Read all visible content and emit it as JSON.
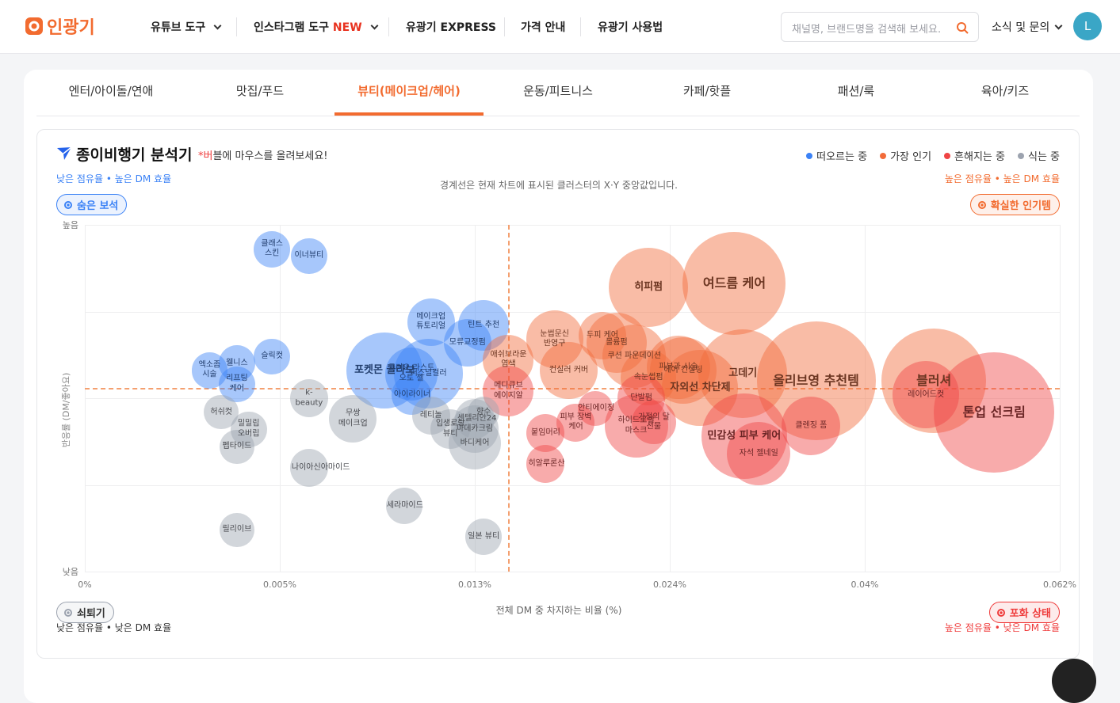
{
  "header": {
    "logo": "인광기",
    "nav": [
      "유튜브 도구",
      "인스타그램 도구",
      "유광기 EXPRESS",
      "가격 안내",
      "유광기 사용법"
    ],
    "new_badge": "NEW",
    "search_placeholder": "채널명, 브랜드명을 검색해 보세요.",
    "notice": "소식 및 문의",
    "avatar": "L"
  },
  "tabs": {
    "items": [
      "엔터/아이돌/연애",
      "맛집/푸드",
      "뷰티(메이크업/헤어)",
      "운동/피트니스",
      "카페/핫플",
      "패션/룩",
      "육아/키즈"
    ],
    "active": 2
  },
  "chart_data": {
    "type": "scatter",
    "title": "종이비행기 분석기",
    "hint": "*버블에 마우스를 올려보세요!",
    "note": "경계선은 현재 차트에 표시된 클러스터의 X·Y 중앙값입니다.",
    "xlabel": "전체 DM 중 차지하는 비율 (%)",
    "ylabel": "반응률 (DM/좋아요)",
    "xlim": [
      0,
      0.062
    ],
    "xticks": [
      {
        "value": 0,
        "label": "0%"
      },
      {
        "value": 0.005,
        "label": "0.005%"
      },
      {
        "value": 0.013,
        "label": "0.013%"
      },
      {
        "value": 0.024,
        "label": "0.024%"
      },
      {
        "value": 0.04,
        "label": "0.04%"
      },
      {
        "value": 0.062,
        "label": "0.062%"
      }
    ],
    "ylim": [
      0,
      100
    ],
    "yticks": [
      {
        "value": 0,
        "label": "낮음"
      },
      {
        "value": 100,
        "label": "높음"
      }
    ],
    "grid": true,
    "legend": "top-right",
    "medians": {
      "x": 0.0149,
      "y": 53
    },
    "quadrants": {
      "top_left": {
        "label": "숨은 보석",
        "desc": "낮은 점유율 • 높은 DM 효율",
        "color": "#3b82f6"
      },
      "top_right": {
        "label": "확실한 인기템",
        "desc": "높은 점유율 • 높은 DM 효율",
        "color": "#f26b2f"
      },
      "bottom_left": {
        "label": "쇠퇴기",
        "desc": "낮은 점유율 • 낮은 DM 효율",
        "color": "#9ca3af"
      },
      "bottom_right": {
        "label": "포화 상태",
        "desc": "높은 점유율 • 낮은 DM 효율",
        "color": "#ef3b3b"
      }
    },
    "series": [
      {
        "name": "떠오르는 중",
        "color": "#3b82f6",
        "labels": [
          "클래스 스킨",
          "이너뷰티",
          "메이크업 튜토리얼",
          "틴트 추천",
          "모류교정펌",
          "포켓몬 콜라보",
          "퍼스널컬러",
          "클리오 라스트 오토 젤",
          "아이라이너",
          "슬릭컷",
          "엑소좀 시술",
          "웰니스",
          "리프팅 케어"
        ],
        "x": [
          0.0048,
          0.0062,
          0.0112,
          0.0135,
          0.0127,
          0.0093,
          0.0111,
          0.0104,
          0.0104,
          0.0048,
          0.0032,
          0.0039,
          0.0039
        ],
        "values": [
          93,
          91,
          72,
          71,
          66,
          58,
          57,
          57,
          51,
          62,
          58,
          60,
          54
        ],
        "sizes": [
          21,
          21,
          36,
          41,
          36,
          92,
          77,
          44,
          25,
          21,
          21,
          21,
          21
        ]
      },
      {
        "name": "가장 인기",
        "color": "#f26b3a",
        "labels": [
          "히피펌",
          "여드름 케어",
          "눈썹문신 반영구",
          "두피 케어",
          "볼륨펌",
          "쿠션 파운데이션",
          "컨실러 커버",
          "애쉬브라운 염색",
          "속눈썹펌",
          "피부과 시술",
          "헤어 컨설팅",
          "자외선 차단제",
          "고데기",
          "올리브영 추천템",
          "블러셔"
        ],
        "x": [
          0.0228,
          0.0293,
          0.0175,
          0.0202,
          0.021,
          0.022,
          0.0183,
          0.0149,
          0.0228,
          0.0247,
          0.0251,
          0.0265,
          0.03,
          0.036,
          0.0478
        ],
        "values": [
          82,
          83,
          67,
          68,
          66,
          62,
          58,
          61,
          56,
          59,
          58,
          53,
          57,
          55,
          55
        ],
        "sizes": [
          100,
          169,
          52,
          36,
          58,
          64,
          52,
          41,
          49,
          64,
          71,
          92,
          125,
          225,
          174
        ]
      },
      {
        "name": "흔해지는 중",
        "color": "#ef4444",
        "labels": [
          "메디큐브 에이지알",
          "톤업 선크림",
          "레이어드컷",
          "단발펌",
          "하이드로겔 마스크",
          "가정의 달 선물",
          "피부 장벽 케어",
          "안티에이징",
          "붙임머리",
          "히알루론산",
          "클렌징 폼",
          "민감성 피부 케어",
          "자석 젤네일"
        ],
        "x": [
          0.0149,
          0.0546,
          0.0469,
          0.0224,
          0.0221,
          0.0231,
          0.0187,
          0.0198,
          0.017,
          0.017,
          0.0356,
          0.0301,
          0.0313
        ],
        "values": [
          52,
          46,
          51,
          50,
          42,
          43,
          43,
          47,
          40,
          31,
          42,
          39,
          34
        ],
        "sizes": [
          41,
          231,
          71,
          36,
          64,
          31,
          23,
          19,
          23,
          23,
          55,
          117,
          64
        ]
      },
      {
        "name": "식는 중",
        "color": "#9ca3af",
        "labels": [
          "k-beauty",
          "허쉬컷",
          "밀밀립 오버립",
          "펩타이드",
          "무쌍 메이크업",
          "레티놀",
          "입생로랑 뷰티",
          "향수",
          "센텔리안24",
          "마데카크림",
          "바디케어",
          "나이아신아마이드",
          "세라마이드",
          "일본 뷰티",
          "릴리이브"
        ],
        "x": [
          0.0062,
          0.0035,
          0.0042,
          0.0039,
          0.008,
          0.0112,
          0.012,
          0.0135,
          0.013,
          0.013,
          0.013,
          0.0062,
          0.0101,
          0.0135,
          0.0039
        ],
        "values": [
          50,
          46,
          41,
          36,
          44,
          45,
          41,
          46,
          44,
          41,
          37,
          30,
          19,
          10,
          12
        ],
        "sizes": [
          23,
          19,
          21,
          19,
          36,
          23,
          25,
          16,
          25,
          36,
          44,
          23,
          21,
          21,
          19
        ]
      }
    ]
  }
}
